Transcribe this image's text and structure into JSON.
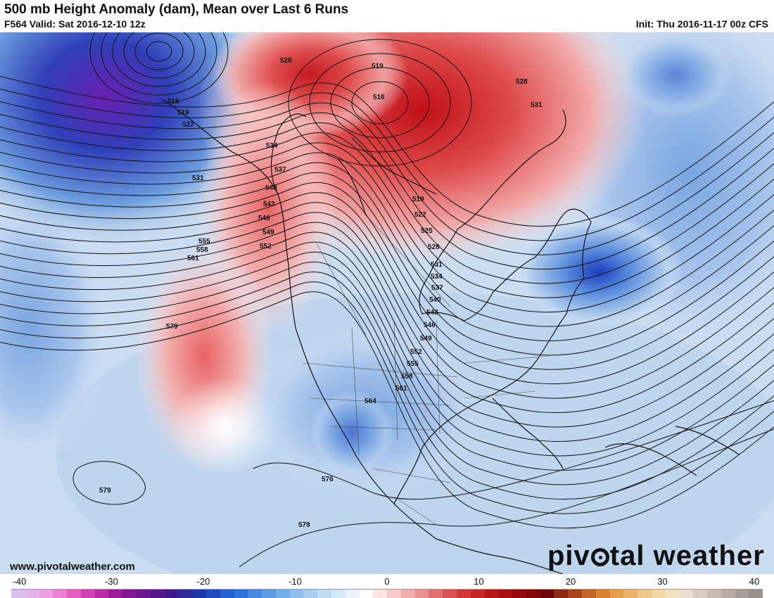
{
  "header": {
    "title": "500 mb Height Anomaly (dam), Mean over Last 6 Runs",
    "valid": "F564 Valid: Sat 2016-12-10 12z",
    "init": "Init: Thu 2016-11-17 00z CFS"
  },
  "map": {
    "contour_labels": [
      "516",
      "519",
      "522",
      "531",
      "528",
      "519",
      "516",
      "528",
      "531",
      "534",
      "537",
      "540",
      "543",
      "546",
      "549",
      "552",
      "555",
      "558",
      "561",
      "579",
      "519",
      "522",
      "525",
      "528",
      "531",
      "534",
      "537",
      "540",
      "543",
      "546",
      "549",
      "552",
      "555",
      "558",
      "561",
      "564",
      "576",
      "579",
      "579"
    ],
    "anomaly_colors": {
      "positive": "#d32020",
      "strong_positive": "#b00b16",
      "negative": "#3a6fd6",
      "strong_negative": "#6a1fb0",
      "neutral": "#ffffff"
    }
  },
  "footer": {
    "website": "www.pivotalweather.com",
    "brand": "pivotal weather"
  },
  "colorbar": {
    "ticks": [
      "-40",
      "-30",
      "-20",
      "-10",
      "0",
      "10",
      "20",
      "30",
      "40"
    ],
    "colors": [
      "#d8c0ec",
      "#e4b4e8",
      "#ee9ee0",
      "#ee80d4",
      "#e45ec4",
      "#cf42b4",
      "#b82ca6",
      "#9d1c9a",
      "#821592",
      "#6b138c",
      "#55168a",
      "#3f1a8a",
      "#2c2a96",
      "#1f3aa8",
      "#1e4bbf",
      "#2460d0",
      "#3074da",
      "#4688e0",
      "#5c9ce4",
      "#74aee8",
      "#8ebeec",
      "#a8ceef",
      "#c0dcf2",
      "#d6e8f6",
      "#eaf2fa",
      "#ffffff",
      "#fbe4e4",
      "#f6caca",
      "#f0aeae",
      "#ea9090",
      "#e27272",
      "#da5454",
      "#d23a3a",
      "#c82626",
      "#ba1818",
      "#a80f12",
      "#94090d",
      "#80070a",
      "#6c0608",
      "#8a2a10",
      "#a8461a",
      "#c46626",
      "#d88234",
      "#e49e4c",
      "#eab46a",
      "#eec88a",
      "#f0d8a6",
      "#f2e4c2",
      "#e8ddd0",
      "#d8ccc0",
      "#c8bcb2",
      "#b8aca4",
      "#a89e98",
      "#9a928e"
    ]
  }
}
